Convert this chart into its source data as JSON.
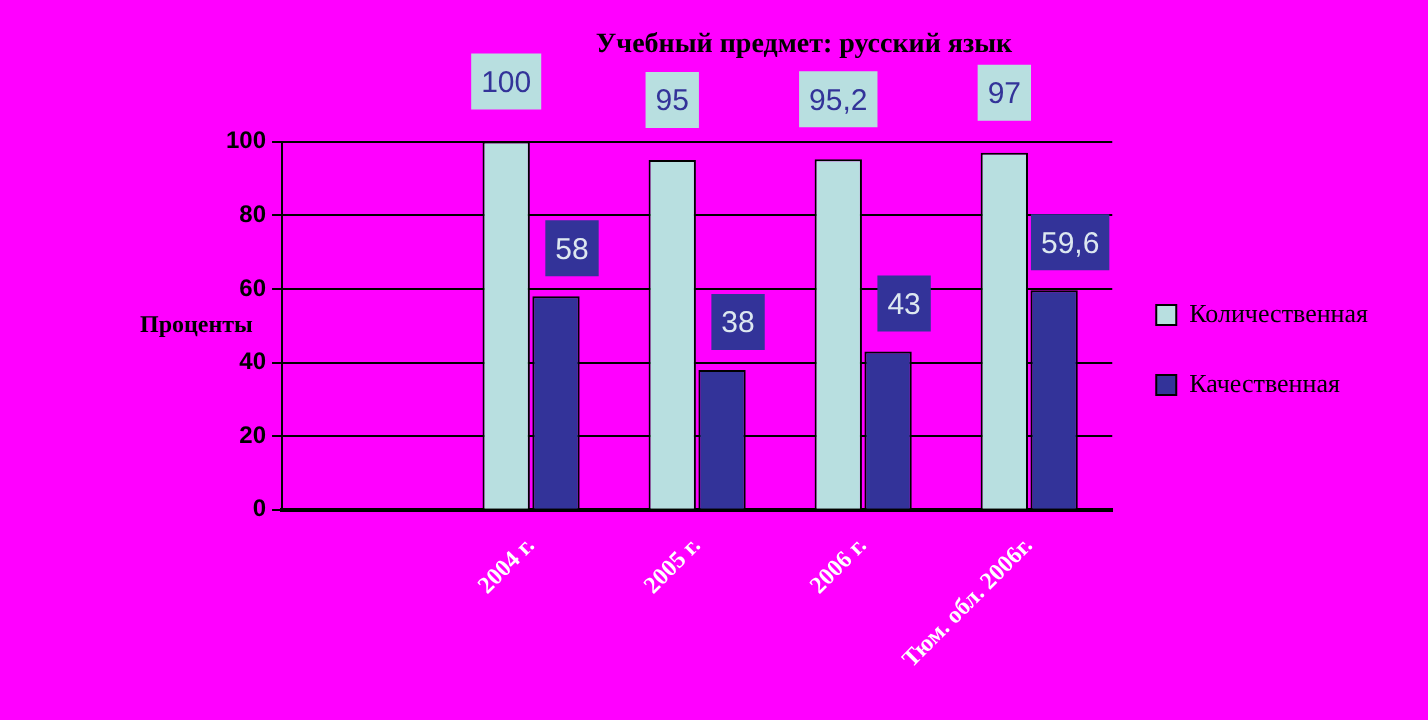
{
  "chart_data": {
    "type": "bar",
    "title": "Учебный предмет: русский язык",
    "ylabel": "Проценты",
    "categories": [
      null,
      "2004 г.",
      "2005 г.",
      "2006 г.",
      "Тюм. обл. 2006г."
    ],
    "series": [
      {
        "name": "Количественная",
        "color": "#b8dfe0",
        "values": [
          null,
          100,
          95,
          95.2,
          97
        ],
        "value_labels": [
          null,
          "100",
          "95",
          "95,2",
          "97"
        ]
      },
      {
        "name": "Качественная",
        "color": "#333399",
        "values": [
          null,
          58,
          38,
          43,
          59.6
        ],
        "value_labels": [
          null,
          "58",
          "38",
          "43",
          "59,6"
        ]
      }
    ],
    "ylim": [
      0,
      100
    ],
    "yticks": [
      0,
      20,
      40,
      60,
      80,
      100
    ],
    "grid": "y",
    "legend": "right"
  }
}
